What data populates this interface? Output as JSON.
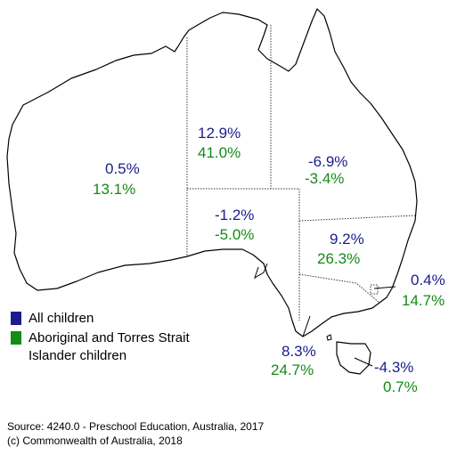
{
  "states": {
    "wa": {
      "all": "0.5%",
      "atsi": "13.1%"
    },
    "nt": {
      "all": "12.9%",
      "atsi": "41.0%"
    },
    "qld": {
      "all": "-6.9%",
      "atsi": "-3.4%"
    },
    "sa": {
      "all": "-1.2%",
      "atsi": "-5.0%"
    },
    "nsw": {
      "all": "9.2%",
      "atsi": "26.3%"
    },
    "act": {
      "all": "0.4%",
      "atsi": "14.7%"
    },
    "vic": {
      "all": "8.3%",
      "atsi": "24.7%"
    },
    "tas": {
      "all": "-4.3%",
      "atsi": "0.7%"
    }
  },
  "legend": {
    "all_children": {
      "label": "All children",
      "color": "#1c1c8c"
    },
    "atsi_children": {
      "line1": "Aboriginal and Torres Strait",
      "line2": "Islander children",
      "color": "#158a15"
    }
  },
  "source": {
    "line1": "Source: 4240.0 - Preschool Education, Australia, 2017",
    "line2": "(c) Commonwealth of Australia, 2018"
  }
}
